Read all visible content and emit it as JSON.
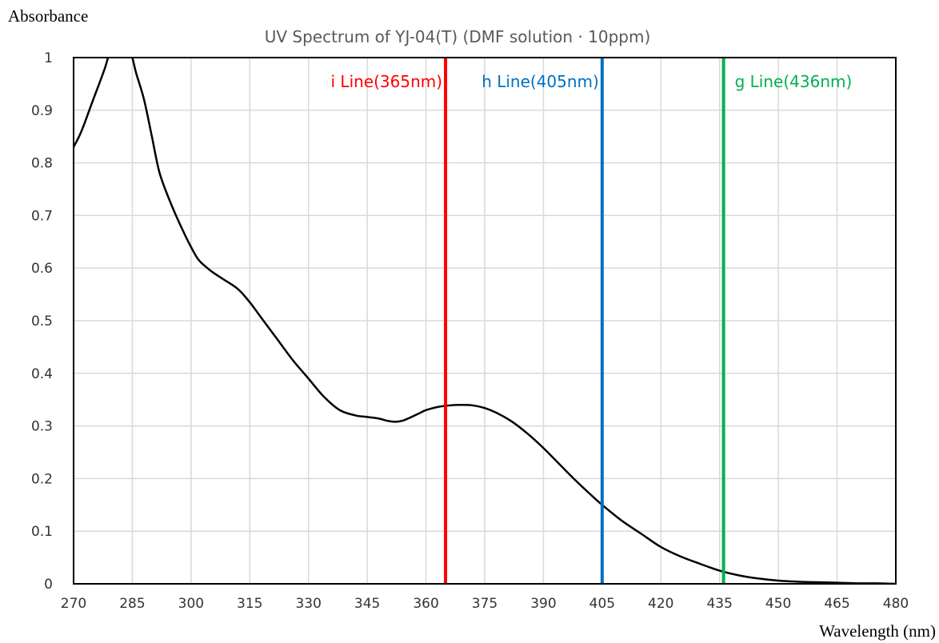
{
  "chart_data": {
    "type": "line",
    "title": "UV Spectrum of YJ-04(T) (DMF solution · 10ppm)",
    "xlabel": "Wavelength (nm)",
    "ylabel": "Absorbance",
    "xlim": [
      270,
      480
    ],
    "ylim": [
      0,
      1
    ],
    "x_ticks": [
      270,
      285,
      300,
      315,
      330,
      345,
      360,
      375,
      390,
      405,
      420,
      435,
      450,
      465,
      480
    ],
    "x_tick_labels": [
      "270",
      "285",
      "300",
      "315",
      "330",
      "345",
      "360",
      "375",
      "390",
      "405",
      "420",
      "435",
      "450",
      "465",
      "480"
    ],
    "y_ticks": [
      0,
      0.1,
      0.2,
      0.3,
      0.4,
      0.5,
      0.6,
      0.7,
      0.8,
      0.9,
      1
    ],
    "y_tick_labels": [
      "0",
      "0.1",
      "0.2",
      "0.3",
      "0.4",
      "0.5",
      "0.6",
      "0.7",
      "0.8",
      "0.9",
      "1"
    ],
    "grid": true,
    "series": [
      {
        "color": "#000000",
        "x": [
          270,
          272,
          275,
          278,
          280,
          282,
          284,
          285,
          286,
          288,
          290,
          292,
          295,
          298,
          300,
          302,
          305,
          308,
          312,
          315,
          318,
          322,
          326,
          330,
          334,
          338,
          342,
          345,
          348,
          350,
          352,
          354,
          356,
          358,
          360,
          363,
          366,
          369,
          372,
          375,
          378,
          382,
          386,
          390,
          394,
          398,
          402,
          405,
          410,
          415,
          420,
          425,
          430,
          435,
          440,
          445,
          450,
          455,
          460,
          465,
          470,
          475,
          480
        ],
        "y": [
          0.83,
          0.86,
          0.92,
          0.98,
          1.03,
          1.05,
          1.02,
          1.0,
          0.97,
          0.92,
          0.85,
          0.78,
          0.72,
          0.67,
          0.64,
          0.615,
          0.595,
          0.58,
          0.56,
          0.535,
          0.505,
          0.465,
          0.425,
          0.39,
          0.355,
          0.33,
          0.32,
          0.317,
          0.314,
          0.31,
          0.308,
          0.31,
          0.316,
          0.323,
          0.33,
          0.336,
          0.339,
          0.34,
          0.339,
          0.334,
          0.325,
          0.308,
          0.285,
          0.258,
          0.228,
          0.198,
          0.17,
          0.15,
          0.12,
          0.095,
          0.07,
          0.052,
          0.038,
          0.025,
          0.016,
          0.01,
          0.006,
          0.004,
          0.003,
          0.002,
          0.001,
          0.001,
          0.0
        ]
      }
    ],
    "vertical_lines": [
      {
        "x": 365,
        "label": "i Line(365nm)",
        "color": "#ff0000",
        "label_side": "left"
      },
      {
        "x": 405,
        "label": "h Line(405nm)",
        "color": "#0070c0",
        "label_side": "left"
      },
      {
        "x": 436,
        "label": "g Line(436nm)",
        "color": "#00b050",
        "label_side": "right"
      }
    ]
  }
}
